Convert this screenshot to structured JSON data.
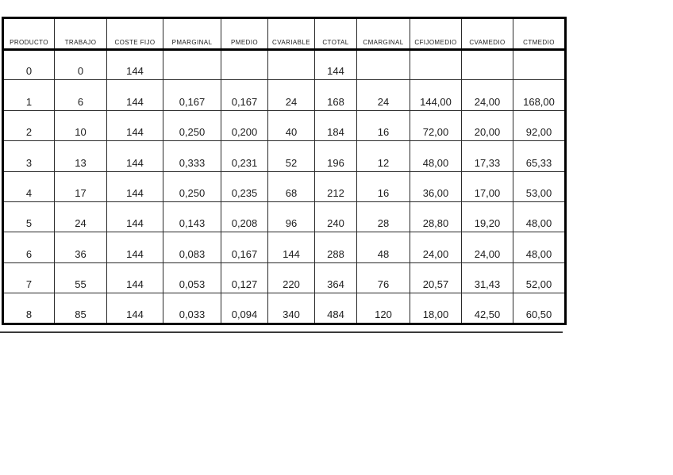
{
  "table": {
    "headers": [
      "PRODUCTO",
      "TRABAJO",
      "COSTE FIJO",
      "PMARGINAL",
      "PMEDIO",
      "CVARIABLE",
      "CTOTAL",
      "CMARGINAL",
      "CFIJOMEDIO",
      "CVAMEDIO",
      "CTMEDIO"
    ],
    "rows": [
      [
        "0",
        "0",
        "144",
        "",
        "",
        "",
        "144",
        "",
        "",
        "",
        ""
      ],
      [
        "1",
        "6",
        "144",
        "0,167",
        "0,167",
        "24",
        "168",
        "24",
        "144,00",
        "24,00",
        "168,00"
      ],
      [
        "2",
        "10",
        "144",
        "0,250",
        "0,200",
        "40",
        "184",
        "16",
        "72,00",
        "20,00",
        "92,00"
      ],
      [
        "3",
        "13",
        "144",
        "0,333",
        "0,231",
        "52",
        "196",
        "12",
        "48,00",
        "17,33",
        "65,33"
      ],
      [
        "4",
        "17",
        "144",
        "0,250",
        "0,235",
        "68",
        "212",
        "16",
        "36,00",
        "17,00",
        "53,00"
      ],
      [
        "5",
        "24",
        "144",
        "0,143",
        "0,208",
        "96",
        "240",
        "28",
        "28,80",
        "19,20",
        "48,00"
      ],
      [
        "6",
        "36",
        "144",
        "0,083",
        "0,167",
        "144",
        "288",
        "48",
        "24,00",
        "24,00",
        "48,00"
      ],
      [
        "7",
        "55",
        "144",
        "0,053",
        "0,127",
        "220",
        "364",
        "76",
        "20,57",
        "31,43",
        "52,00"
      ],
      [
        "8",
        "85",
        "144",
        "0,033",
        "0,094",
        "340",
        "484",
        "120",
        "18,00",
        "42,50",
        "60,50"
      ]
    ],
    "border_color": "#000000",
    "text_color": "#1c1c1c",
    "background_color": "#ffffff"
  }
}
